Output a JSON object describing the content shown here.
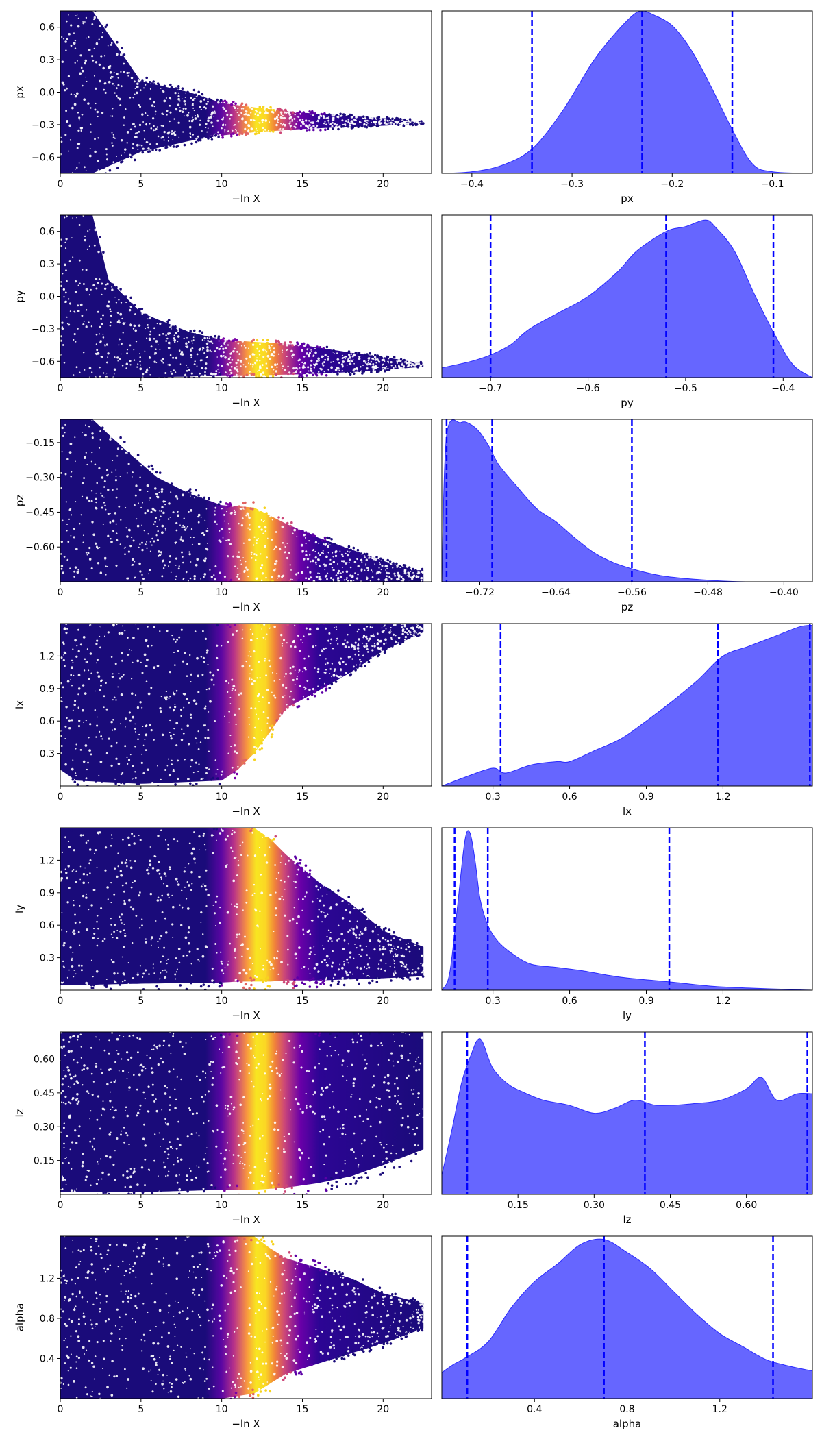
{
  "colors": {
    "density_fill": "#0000ff",
    "density_fill_opacity": 0.6,
    "quantile_line": "#0000ff",
    "scatter_colormap": "plasma"
  },
  "chart_data": [
    {
      "type": "scatter",
      "param": "px",
      "xlabel": "−ln X",
      "ylabel": "px",
      "xlim": [
        0,
        23
      ],
      "ylim": [
        -0.75,
        0.75
      ],
      "xticks": [
        0,
        5,
        10,
        15,
        20
      ],
      "yticks": [
        -0.6,
        -0.3,
        0.0,
        0.3,
        0.6
      ],
      "ytick_labels": [
        "−0.6",
        "−0.3",
        "0.0",
        "0.3",
        "0.6"
      ],
      "envelope": {
        "x": [
          0,
          2,
          5,
          8,
          10,
          12,
          15,
          18,
          20,
          22.5
        ],
        "lower": [
          -0.75,
          -0.75,
          -0.55,
          -0.45,
          -0.4,
          -0.37,
          -0.34,
          -0.32,
          -0.31,
          -0.29
        ],
        "upper": [
          0.75,
          0.75,
          0.1,
          0.0,
          -0.1,
          -0.14,
          -0.19,
          -0.22,
          -0.24,
          -0.27
        ]
      },
      "x_extent": [
        0,
        22.5
      ],
      "colormap_peak_x": 12.5
    },
    {
      "type": "area",
      "param": "px",
      "xlabel": "px",
      "xlim": [
        -0.43,
        -0.06
      ],
      "ylim": [
        0,
        1.0
      ],
      "xticks": [
        -0.4,
        -0.3,
        -0.2,
        -0.1
      ],
      "xtick_labels": [
        "−0.4",
        "−0.3",
        "−0.2",
        "−0.1"
      ],
      "density": {
        "x": [
          -0.43,
          -0.4,
          -0.37,
          -0.34,
          -0.31,
          -0.28,
          -0.26,
          -0.24,
          -0.23,
          -0.22,
          -0.2,
          -0.18,
          -0.16,
          -0.14,
          -0.12,
          -0.1,
          -0.06
        ],
        "y": [
          0.0,
          0.01,
          0.05,
          0.15,
          0.38,
          0.68,
          0.84,
          0.97,
          1.0,
          0.98,
          0.91,
          0.75,
          0.52,
          0.27,
          0.06,
          0.01,
          0.0
        ]
      },
      "quantiles": [
        -0.34,
        -0.23,
        -0.14
      ]
    },
    {
      "type": "scatter",
      "param": "py",
      "xlabel": "−ln X",
      "ylabel": "py",
      "xlim": [
        0,
        23
      ],
      "ylim": [
        -0.75,
        0.75
      ],
      "xticks": [
        0,
        5,
        10,
        15,
        20
      ],
      "yticks": [
        -0.6,
        -0.3,
        0.0,
        0.3,
        0.6
      ],
      "ytick_labels": [
        "−0.6",
        "−0.3",
        "0.0",
        "0.3",
        "0.6"
      ],
      "envelope": {
        "x": [
          0,
          2,
          3,
          5,
          8,
          10,
          12,
          15,
          18,
          20,
          22.5
        ],
        "lower": [
          -0.75,
          -0.75,
          -0.75,
          -0.75,
          -0.74,
          -0.73,
          -0.73,
          -0.72,
          -0.7,
          -0.68,
          -0.65
        ],
        "upper": [
          0.75,
          0.75,
          0.15,
          -0.15,
          -0.33,
          -0.4,
          -0.42,
          -0.45,
          -0.52,
          -0.56,
          -0.62
        ]
      },
      "x_extent": [
        0,
        22.5
      ],
      "colormap_peak_x": 12.5
    },
    {
      "type": "area",
      "param": "py",
      "xlabel": "py",
      "xlim": [
        -0.75,
        -0.37
      ],
      "ylim": [
        0,
        1.0
      ],
      "xticks": [
        -0.7,
        -0.6,
        -0.5,
        -0.4
      ],
      "xtick_labels": [
        "−0.7",
        "−0.6",
        "−0.5",
        "−0.4"
      ],
      "density": {
        "x": [
          -0.75,
          -0.72,
          -0.7,
          -0.68,
          -0.66,
          -0.63,
          -0.6,
          -0.57,
          -0.55,
          -0.52,
          -0.5,
          -0.48,
          -0.47,
          -0.45,
          -0.43,
          -0.41,
          -0.39,
          -0.37
        ],
        "y": [
          0.06,
          0.1,
          0.14,
          0.2,
          0.3,
          0.4,
          0.5,
          0.65,
          0.78,
          0.9,
          0.93,
          0.97,
          0.93,
          0.78,
          0.52,
          0.28,
          0.08,
          0.0
        ]
      },
      "quantiles": [
        -0.7,
        -0.52,
        -0.41
      ]
    },
    {
      "type": "scatter",
      "param": "pz",
      "xlabel": "−ln X",
      "ylabel": "pz",
      "xlim": [
        0,
        23
      ],
      "ylim": [
        -0.75,
        -0.05
      ],
      "xticks": [
        0,
        5,
        10,
        15,
        20
      ],
      "yticks": [
        -0.6,
        -0.45,
        -0.3,
        -0.15
      ],
      "ytick_labels": [
        "−0.60",
        "−0.45",
        "−0.30",
        "−0.15"
      ],
      "envelope": {
        "x": [
          0,
          2,
          4,
          6,
          8,
          10,
          12,
          14,
          16,
          18,
          20,
          22
        ],
        "lower": [
          -0.75,
          -0.75,
          -0.75,
          -0.75,
          -0.75,
          -0.75,
          -0.75,
          -0.75,
          -0.75,
          -0.75,
          -0.75,
          -0.75
        ],
        "upper": [
          -0.05,
          -0.05,
          -0.18,
          -0.3,
          -0.37,
          -0.42,
          -0.43,
          -0.5,
          -0.56,
          -0.61,
          -0.66,
          -0.7
        ]
      },
      "x_extent": [
        0,
        22.5
      ],
      "colormap_peak_x": 12.5
    },
    {
      "type": "area",
      "param": "pz",
      "xlabel": "pz",
      "xlim": [
        -0.76,
        -0.37
      ],
      "ylim": [
        0,
        1.0
      ],
      "xticks": [
        -0.72,
        -0.64,
        -0.56,
        -0.48,
        -0.4
      ],
      "xtick_labels": [
        "−0.72",
        "−0.64",
        "−0.56",
        "−0.48",
        "−0.40"
      ],
      "density": {
        "x": [
          -0.76,
          -0.755,
          -0.74,
          -0.73,
          -0.72,
          -0.71,
          -0.7,
          -0.68,
          -0.66,
          -0.64,
          -0.62,
          -0.6,
          -0.58,
          -0.56,
          -0.54,
          -0.52,
          -0.48,
          -0.44,
          -0.37
        ],
        "y": [
          0.0,
          0.9,
          0.98,
          0.97,
          0.92,
          0.83,
          0.72,
          0.58,
          0.45,
          0.37,
          0.27,
          0.18,
          0.12,
          0.08,
          0.05,
          0.03,
          0.01,
          0.0,
          0.0
        ]
      },
      "quantiles": [
        -0.755,
        -0.707,
        -0.56
      ]
    },
    {
      "type": "scatter",
      "param": "lx",
      "xlabel": "−ln X",
      "ylabel": "lx",
      "xlim": [
        0,
        23
      ],
      "ylim": [
        0.0,
        1.5
      ],
      "xticks": [
        0,
        5,
        10,
        15,
        20
      ],
      "yticks": [
        0.3,
        0.6,
        0.9,
        1.2
      ],
      "ytick_labels": [
        "0.3",
        "0.6",
        "0.9",
        "1.2"
      ],
      "envelope": {
        "x": [
          0,
          1,
          5,
          10,
          11,
          12,
          13,
          14,
          16,
          18,
          20,
          22.5
        ],
        "lower": [
          0.15,
          0.05,
          0.02,
          0.05,
          0.15,
          0.3,
          0.5,
          0.72,
          0.88,
          1.05,
          1.25,
          1.42
        ],
        "upper": [
          1.5,
          1.5,
          1.5,
          1.5,
          1.5,
          1.5,
          1.5,
          1.5,
          1.5,
          1.5,
          1.5,
          1.5
        ]
      },
      "x_extent": [
        0,
        22.5
      ],
      "colormap_peak_x": 12.5
    },
    {
      "type": "area",
      "param": "lx",
      "xlabel": "lx",
      "xlim": [
        0.1,
        1.55
      ],
      "ylim": [
        0,
        1.0
      ],
      "xticks": [
        0.3,
        0.6,
        0.9,
        1.2
      ],
      "xtick_labels": [
        "0.3",
        "0.6",
        "0.9",
        "1.2"
      ],
      "density": {
        "x": [
          0.1,
          0.2,
          0.3,
          0.35,
          0.45,
          0.55,
          0.6,
          0.7,
          0.8,
          0.9,
          1.0,
          1.1,
          1.2,
          1.3,
          1.4,
          1.5,
          1.55
        ],
        "y": [
          0.0,
          0.06,
          0.11,
          0.08,
          0.13,
          0.15,
          0.15,
          0.22,
          0.29,
          0.4,
          0.52,
          0.65,
          0.8,
          0.86,
          0.92,
          0.98,
          0.99
        ]
      },
      "quantiles": [
        0.33,
        1.18,
        1.54
      ]
    },
    {
      "type": "scatter",
      "param": "ly",
      "xlabel": "−ln X",
      "ylabel": "ly",
      "xlim": [
        0,
        23
      ],
      "ylim": [
        0.0,
        1.5
      ],
      "xticks": [
        0,
        5,
        10,
        15,
        20
      ],
      "yticks": [
        0.3,
        0.6,
        0.9,
        1.2
      ],
      "ytick_labels": [
        "0.3",
        "0.6",
        "0.9",
        "1.2"
      ],
      "envelope": {
        "x": [
          0,
          2,
          5,
          10,
          11,
          12,
          13,
          14,
          16,
          18,
          20,
          22.5
        ],
        "lower": [
          0.05,
          0.05,
          0.06,
          0.07,
          0.08,
          0.08,
          0.08,
          0.09,
          0.09,
          0.1,
          0.11,
          0.13
        ],
        "upper": [
          1.5,
          1.5,
          1.5,
          1.5,
          1.5,
          1.5,
          1.4,
          1.25,
          1.0,
          0.8,
          0.55,
          0.4
        ]
      },
      "x_extent": [
        0,
        22.5
      ],
      "colormap_peak_x": 12.5
    },
    {
      "type": "area",
      "param": "ly",
      "xlabel": "ly",
      "xlim": [
        0.1,
        1.55
      ],
      "ylim": [
        0,
        1.0
      ],
      "xticks": [
        0.3,
        0.6,
        0.9,
        1.2
      ],
      "xtick_labels": [
        "0.3",
        "0.6",
        "0.9",
        "1.2"
      ],
      "density": {
        "x": [
          0.1,
          0.13,
          0.16,
          0.19,
          0.21,
          0.23,
          0.25,
          0.28,
          0.32,
          0.38,
          0.45,
          0.55,
          0.65,
          0.8,
          1.0,
          1.2,
          1.55
        ],
        "y": [
          0.0,
          0.1,
          0.5,
          0.92,
          0.97,
          0.8,
          0.56,
          0.4,
          0.3,
          0.22,
          0.16,
          0.14,
          0.12,
          0.08,
          0.05,
          0.02,
          0.0
        ]
      },
      "quantiles": [
        0.15,
        0.28,
        0.99
      ]
    },
    {
      "type": "scatter",
      "param": "lz",
      "xlabel": "−ln X",
      "ylabel": "lz",
      "xlim": [
        0,
        23
      ],
      "ylim": [
        0.0,
        0.72
      ],
      "xticks": [
        0,
        5,
        10,
        15,
        20
      ],
      "yticks": [
        0.15,
        0.3,
        0.45,
        0.6
      ],
      "ytick_labels": [
        "0.15",
        "0.30",
        "0.45",
        "0.60"
      ],
      "envelope": {
        "x": [
          0,
          2,
          5,
          10,
          12,
          14,
          16,
          18,
          20,
          22.5
        ],
        "lower": [
          0.01,
          0.01,
          0.01,
          0.02,
          0.02,
          0.03,
          0.05,
          0.08,
          0.13,
          0.2
        ],
        "upper": [
          0.72,
          0.72,
          0.72,
          0.72,
          0.72,
          0.72,
          0.72,
          0.72,
          0.72,
          0.72
        ]
      },
      "x_extent": [
        0,
        22.5
      ],
      "colormap_peak_x": 12.5
    },
    {
      "type": "area",
      "param": "lz",
      "xlabel": "lz",
      "xlim": [
        0.0,
        0.73
      ],
      "ylim": [
        0,
        1.0
      ],
      "xticks": [
        0.15,
        0.3,
        0.45,
        0.6
      ],
      "xtick_labels": [
        "0.15",
        "0.30",
        "0.45",
        "0.60"
      ],
      "density": {
        "x": [
          0.0,
          0.02,
          0.04,
          0.06,
          0.07,
          0.08,
          0.1,
          0.13,
          0.16,
          0.2,
          0.25,
          0.3,
          0.34,
          0.38,
          0.42,
          0.46,
          0.5,
          0.55,
          0.6,
          0.63,
          0.66,
          0.7,
          0.73
        ],
        "y": [
          0.12,
          0.4,
          0.7,
          0.88,
          0.95,
          0.94,
          0.78,
          0.68,
          0.63,
          0.58,
          0.55,
          0.5,
          0.53,
          0.58,
          0.55,
          0.55,
          0.56,
          0.58,
          0.65,
          0.72,
          0.58,
          0.62,
          0.62
        ]
      },
      "quantiles": [
        0.05,
        0.4,
        0.72
      ]
    },
    {
      "type": "scatter",
      "param": "alpha",
      "xlabel": "−ln X",
      "ylabel": "alpha",
      "xlim": [
        0,
        23
      ],
      "ylim": [
        0.0,
        1.62
      ],
      "xticks": [
        0,
        5,
        10,
        15,
        20
      ],
      "yticks": [
        0.4,
        0.8,
        1.2
      ],
      "ytick_labels": [
        "0.4",
        "0.8",
        "1.2"
      ],
      "envelope": {
        "x": [
          0,
          2,
          5,
          10,
          12,
          13,
          14,
          16,
          18,
          20,
          22.5
        ],
        "lower": [
          0.0,
          0.0,
          0.0,
          0.0,
          0.05,
          0.15,
          0.25,
          0.35,
          0.45,
          0.55,
          0.7
        ],
        "upper": [
          1.62,
          1.62,
          1.62,
          1.62,
          1.62,
          1.5,
          1.4,
          1.3,
          1.2,
          1.05,
          0.95
        ]
      },
      "x_extent": [
        0,
        22.5
      ],
      "colormap_peak_x": 12.5
    },
    {
      "type": "area",
      "param": "alpha",
      "xlabel": "alpha",
      "xlim": [
        0.0,
        1.6
      ],
      "ylim": [
        0,
        1.0
      ],
      "xticks": [
        0.4,
        0.8,
        1.2
      ],
      "xtick_labels": [
        "0.4",
        "0.8",
        "1.2"
      ],
      "density": {
        "x": [
          0.0,
          0.05,
          0.1,
          0.2,
          0.3,
          0.4,
          0.5,
          0.6,
          0.7,
          0.8,
          0.9,
          1.0,
          1.1,
          1.2,
          1.3,
          1.4,
          1.5,
          1.6
        ],
        "y": [
          0.16,
          0.21,
          0.25,
          0.35,
          0.56,
          0.72,
          0.83,
          0.95,
          0.98,
          0.9,
          0.8,
          0.66,
          0.52,
          0.4,
          0.32,
          0.24,
          0.2,
          0.17
        ]
      },
      "quantiles": [
        0.11,
        0.7,
        1.43
      ]
    }
  ]
}
